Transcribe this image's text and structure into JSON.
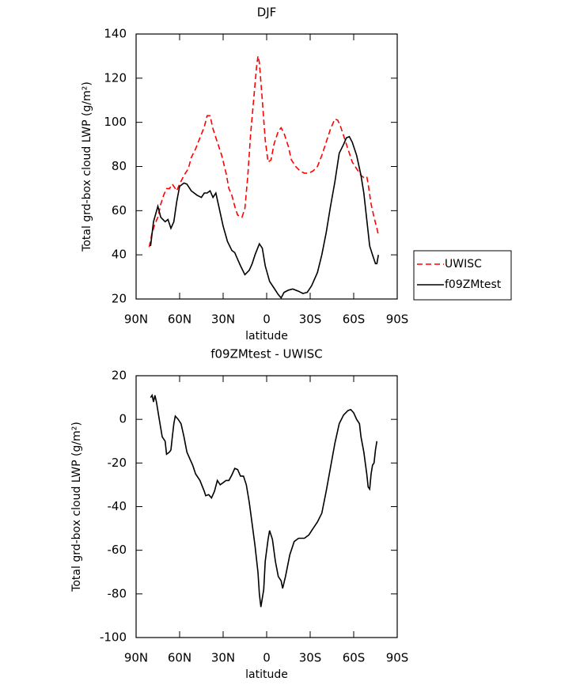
{
  "chart_data": [
    {
      "type": "line",
      "title": "DJF",
      "xlabel": "latitude",
      "ylabel": "Total grd-box cloud LWP (g/m²)",
      "xlim": [
        90,
        -90
      ],
      "ylim": [
        20,
        140
      ],
      "xticks": [
        {
          "value": 90,
          "label": "90N"
        },
        {
          "value": 60,
          "label": "60N"
        },
        {
          "value": 30,
          "label": "30N"
        },
        0,
        {
          "value": -30,
          "label": "30S"
        },
        {
          "value": -60,
          "label": "60S"
        },
        {
          "value": -90,
          "label": "90S"
        }
      ],
      "yticks": [
        20,
        40,
        60,
        80,
        100,
        120,
        140
      ],
      "legend": "right",
      "series": [
        {
          "name": "UWISC",
          "color": "#ff0000",
          "linestyle": "dashed",
          "x": [
            81,
            79,
            77,
            75,
            73,
            71,
            69,
            67,
            65,
            62,
            60,
            57,
            54,
            52,
            49,
            46,
            43,
            41,
            39,
            37,
            34,
            31,
            28,
            26,
            24,
            22,
            20,
            17,
            15,
            13,
            11,
            9,
            7,
            6,
            5,
            3,
            1,
            -1,
            -3,
            -5,
            -8,
            -10,
            -12,
            -15,
            -17,
            -20,
            -23,
            -26,
            -29,
            -32,
            -35,
            -38,
            -41,
            -44,
            -47,
            -49,
            -51,
            -53,
            -56,
            -59,
            -62,
            -65,
            -67,
            -69,
            -70,
            -72,
            -74,
            -76,
            -77
          ],
          "values": [
            43.5,
            50,
            54,
            57,
            63,
            67,
            70,
            70,
            72,
            69,
            72,
            76,
            79,
            84,
            88,
            93,
            98,
            103,
            103,
            97,
            91,
            85,
            77,
            70,
            67,
            62,
            58,
            57,
            61,
            76,
            95,
            110,
            125,
            130,
            127,
            110,
            92,
            82,
            83,
            90,
            96,
            97.5,
            95,
            89,
            83,
            80,
            78,
            77,
            77,
            78,
            80,
            85,
            91,
            97,
            101.5,
            101,
            98,
            94,
            88,
            82,
            79,
            76,
            75,
            75.5,
            72,
            63,
            57,
            52,
            49
          ]
        },
        {
          "name": "f09ZMtest",
          "color": "#000000",
          "linestyle": "solid",
          "x": [
            80,
            78,
            75,
            73,
            70,
            68,
            66,
            64,
            62,
            60,
            57,
            55,
            52,
            48,
            45,
            43,
            41,
            39,
            37,
            35,
            33,
            30,
            27,
            24,
            22,
            20,
            18,
            15,
            12,
            10,
            8,
            5,
            3,
            1,
            -2,
            -5,
            -8,
            -10,
            -12,
            -15,
            -18,
            -22,
            -25,
            -28,
            -31,
            -35,
            -38,
            -41,
            -44,
            -47,
            -50,
            -53,
            -55,
            -57,
            -59,
            -62,
            -65,
            -67,
            -69,
            -71,
            -73,
            -75,
            -76,
            -77
          ],
          "values": [
            44,
            55,
            62,
            57,
            55,
            56,
            52,
            55,
            64,
            71,
            72.5,
            72,
            69,
            67,
            66,
            68,
            68,
            69,
            66,
            68,
            62,
            53,
            46,
            42,
            41,
            38,
            35,
            31,
            33,
            36,
            40,
            45,
            43,
            35,
            28,
            25,
            22,
            20.5,
            23,
            24,
            24.5,
            23.5,
            22.5,
            23,
            26,
            32,
            40,
            50,
            62,
            73,
            86,
            90,
            93,
            93.5,
            91,
            85,
            76,
            68,
            56,
            44,
            40,
            36,
            36,
            40
          ]
        }
      ]
    },
    {
      "type": "line",
      "title": "f09ZMtest - UWISC",
      "xlabel": "latitude",
      "ylabel": "Total grd-box cloud LWP (g/m²)",
      "xlim": [
        90,
        -90
      ],
      "ylim": [
        -100,
        20
      ],
      "xticks": [
        {
          "value": 90,
          "label": "90N"
        },
        {
          "value": 60,
          "label": "60N"
        },
        {
          "value": 30,
          "label": "30N"
        },
        0,
        {
          "value": -30,
          "label": "30S"
        },
        {
          "value": -60,
          "label": "60S"
        },
        {
          "value": -90,
          "label": "90S"
        }
      ],
      "yticks": [
        -100,
        -80,
        -60,
        -40,
        -20,
        0,
        20
      ],
      "series": [
        {
          "color": "#000000",
          "linestyle": "solid",
          "x": [
            80,
            79,
            78,
            77,
            76,
            74,
            72,
            70,
            69,
            67,
            66,
            65,
            64,
            63,
            61,
            59,
            57,
            55,
            53,
            51,
            49,
            46,
            43,
            42,
            40,
            38,
            36,
            34,
            32,
            30,
            28,
            26,
            24,
            22,
            20,
            18,
            16,
            14,
            12,
            10,
            8,
            6,
            5,
            4,
            2,
            1,
            -1,
            -2,
            -4,
            -6,
            -8,
            -10,
            -11,
            -13,
            -16,
            -19,
            -22,
            -26,
            -29,
            -32,
            -35,
            -38,
            -41,
            -44,
            -47,
            -50,
            -53,
            -56,
            -58,
            -60,
            -62,
            -64,
            -65,
            -67,
            -69,
            -70,
            -71,
            -72,
            -73,
            -74,
            -75,
            -76
          ],
          "values": [
            10,
            11,
            8,
            11,
            8,
            0,
            -8,
            -10,
            -16,
            -15,
            -14,
            -8,
            -2,
            1.5,
            0,
            -2,
            -8,
            -15,
            -18,
            -21,
            -25,
            -28,
            -33,
            -35,
            -34.5,
            -36,
            -33,
            -28,
            -30,
            -29,
            -28,
            -28,
            -25.5,
            -22.5,
            -23,
            -26,
            -26,
            -30,
            -38,
            -48,
            -58,
            -70,
            -80,
            -86,
            -78,
            -65,
            -55,
            -51,
            -55,
            -65,
            -72,
            -74,
            -77.5,
            -72,
            -62,
            -56,
            -54.5,
            -54.5,
            -53,
            -50,
            -47,
            -43,
            -33,
            -22,
            -11,
            -2,
            2,
            4,
            4.5,
            3,
            0,
            -2,
            -8,
            -15,
            -25,
            -31,
            -32,
            -25,
            -21,
            -20,
            -14,
            -10
          ]
        }
      ]
    }
  ]
}
